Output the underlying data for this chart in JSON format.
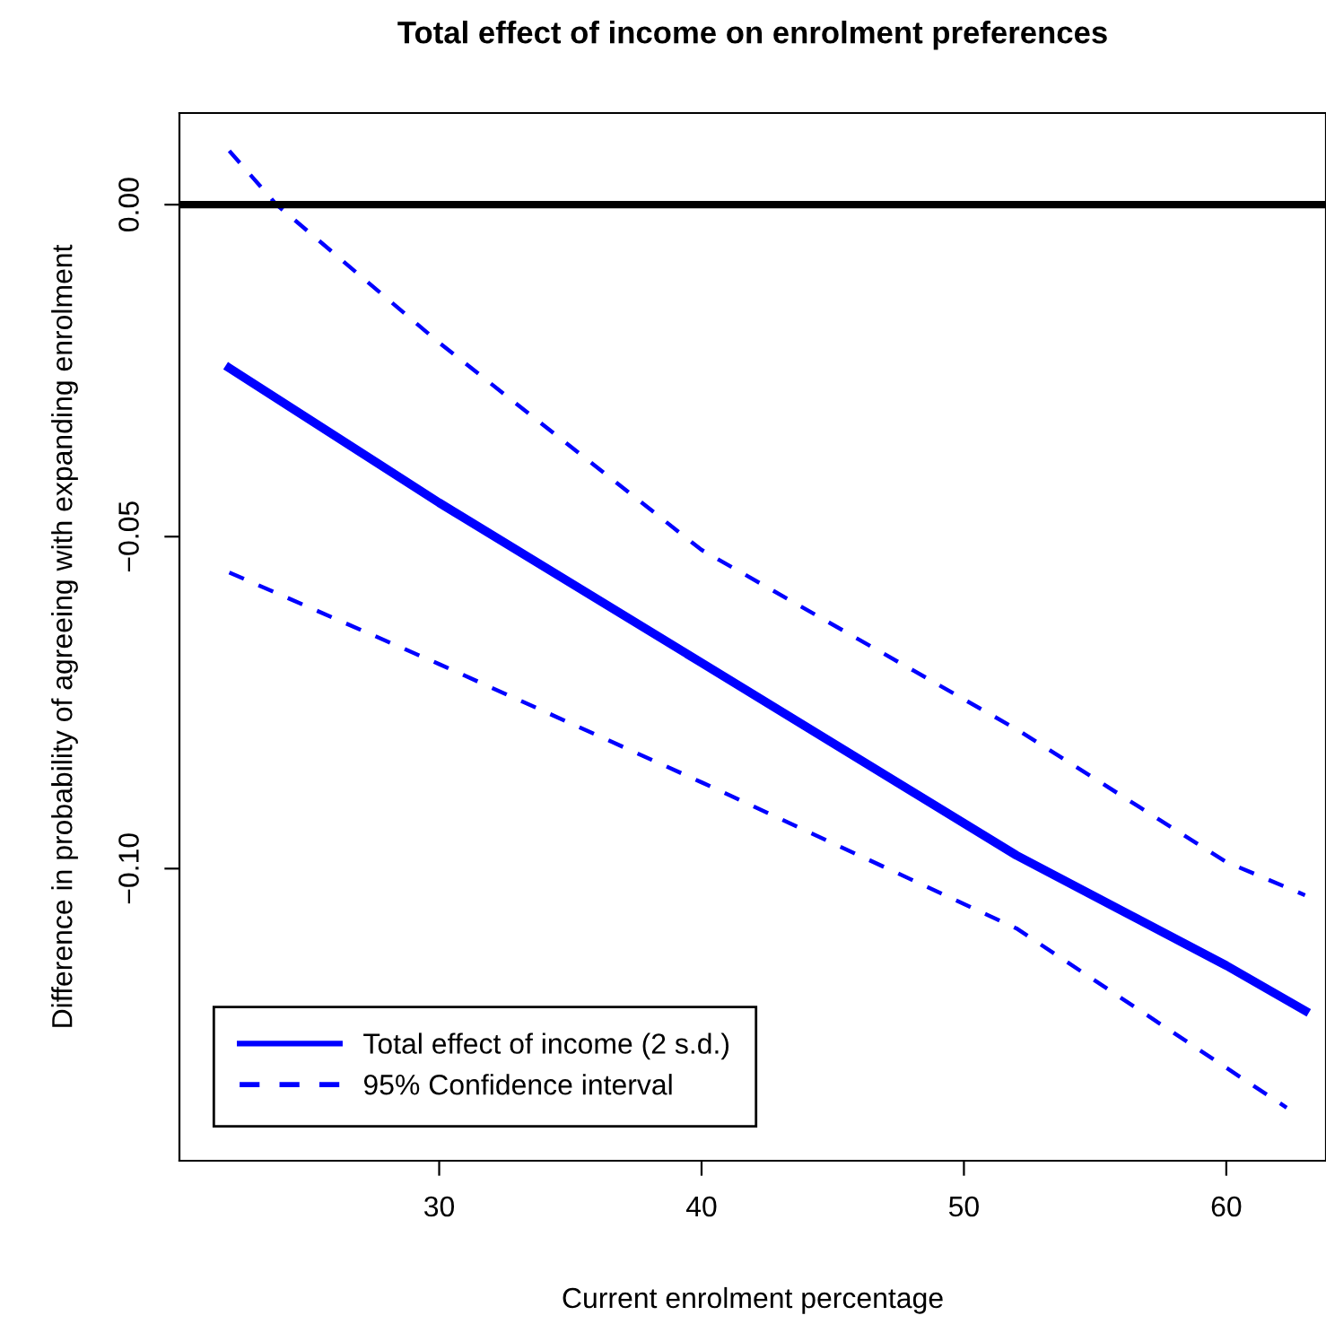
{
  "chart_data": {
    "type": "line",
    "title": "Total effect of income on enrolment preferences",
    "xlabel": "Current enrolment percentage",
    "ylabel": "Difference in probability of agreeing with expanding enrolment",
    "series": [
      {
        "name": "Total effect of income (2 s.d.)",
        "color": "#0000ff",
        "line_style": "solid",
        "x": [
          22,
          30,
          40,
          52,
          60,
          63
        ],
        "values": [
          -0.0246,
          -0.0449,
          -0.069,
          -0.098,
          -0.1146,
          -0.1214
        ]
      },
      {
        "name": "95% Confidence interval",
        "color": "#0000ff",
        "line_style": "dashed",
        "x": [
          22,
          23.8,
          30,
          40,
          52,
          60,
          63
        ],
        "values": [
          0.0081,
          0,
          -0.0208,
          -0.052,
          -0.079,
          -0.099,
          -0.104
        ]
      },
      {
        "color": "#0000ff",
        "line_style": "dashed",
        "x": [
          22,
          30,
          40,
          52,
          60,
          62.3
        ],
        "values": [
          -0.0554,
          -0.0692,
          -0.087,
          -0.109,
          -0.13,
          -0.136
        ]
      }
    ],
    "ref_lines": [
      {
        "axis": "y",
        "value": 0,
        "color": "#000000",
        "line_style": "solid"
      }
    ],
    "xlim": [
      20.1,
      63.8
    ],
    "ylim": [
      -0.144,
      0.0138
    ],
    "xticks": [
      30,
      40,
      50,
      60
    ],
    "yticks": [
      {
        "value": 0,
        "label": "0.00"
      },
      {
        "value": -0.05,
        "label": "−0.05"
      },
      {
        "value": -0.1,
        "label": "−0.10"
      }
    ],
    "grid": false,
    "legend": "bottom left",
    "marker": "none"
  }
}
